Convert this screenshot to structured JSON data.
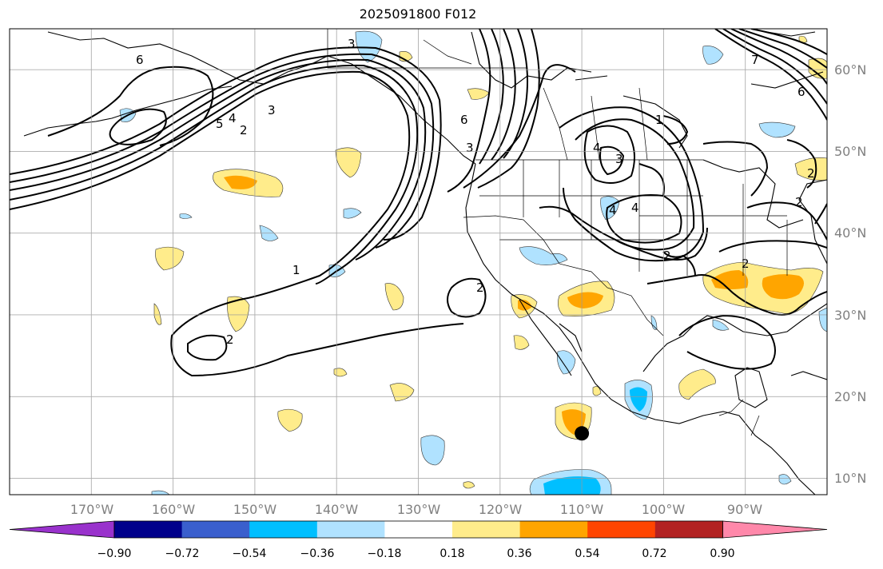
{
  "title": "2025091800 F012",
  "map": {
    "lon_labels": [
      "170°W",
      "160°W",
      "150°W",
      "140°W",
      "130°W",
      "120°W",
      "110°W",
      "100°W",
      "90°W"
    ],
    "lat_labels": [
      "60°N",
      "50°N",
      "40°N",
      "30°N",
      "20°N",
      "10°N"
    ],
    "lon_range": [
      -180,
      -80
    ],
    "lat_range": [
      8,
      65
    ],
    "marker": {
      "name": "point-marker",
      "lon": -110.0,
      "lat": 15.5
    },
    "contour_labels": [
      "6",
      "5",
      "4",
      "3",
      "2",
      "1",
      "6",
      "4",
      "3",
      "4",
      "2",
      "1",
      "2",
      "2",
      "3",
      "4",
      "2",
      "7",
      "6",
      "2",
      "2",
      "3"
    ]
  },
  "colorbar": {
    "ticks": [
      "−0.90",
      "−0.72",
      "−0.54",
      "−0.36",
      "−0.18",
      "0.18",
      "0.36",
      "0.54",
      "0.72",
      "0.90"
    ],
    "colors": [
      "#9932cc",
      "#00008b",
      "#3a5fcd",
      "#00bfff",
      "#b0e2ff",
      "#ffffff",
      "#ffec8b",
      "#ffa500",
      "#ff4500",
      "#b22222",
      "#ff88aa"
    ]
  }
}
